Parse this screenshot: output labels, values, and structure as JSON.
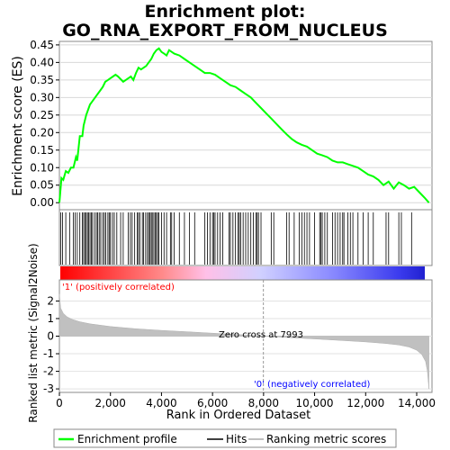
{
  "chart_data": [
    {
      "type": "line",
      "title": "Enrichment plot: GO_RNA_EXPORT_FROM_NUCLEUS",
      "ylabel": "Enrichment score (ES)",
      "ylim": [
        -0.02,
        0.46
      ],
      "xlim": [
        0,
        14600
      ],
      "y_ticks": [
        0.0,
        0.05,
        0.1,
        0.15,
        0.2,
        0.25,
        0.3,
        0.35,
        0.4,
        0.45
      ],
      "y_tick_labels": [
        "0.00",
        "0.05",
        "0.10",
        "0.15",
        "0.20",
        "0.25",
        "0.30",
        "0.35",
        "0.40",
        "0.45"
      ],
      "series": [
        {
          "name": "Enrichment profile",
          "color": "#00ff00",
          "x": [
            0,
            80,
            150,
            250,
            350,
            450,
            550,
            650,
            700,
            800,
            900,
            950,
            1050,
            1150,
            1200,
            1300,
            1400,
            1500,
            1600,
            1700,
            1800,
            1900,
            2000,
            2100,
            2200,
            2300,
            2500,
            2600,
            2700,
            2800,
            2900,
            3000,
            3100,
            3200,
            3300,
            3400,
            3500,
            3600,
            3700,
            3800,
            3900,
            4000,
            4100,
            4200,
            4300,
            4400,
            4500,
            4700,
            4900,
            5100,
            5300,
            5500,
            5700,
            5900,
            6100,
            6300,
            6500,
            6700,
            6900,
            7100,
            7300,
            7500,
            7700,
            7900,
            8100,
            8300,
            8500,
            8700,
            8900,
            9100,
            9300,
            9500,
            9700,
            9900,
            10100,
            10300,
            10500,
            10700,
            10900,
            11100,
            11300,
            11500,
            11700,
            11900,
            12100,
            12300,
            12500,
            12700,
            12900,
            13100,
            13300,
            13500,
            13700,
            13900,
            14100,
            14300,
            14480
          ],
          "y": [
            0.0,
            0.07,
            0.065,
            0.09,
            0.085,
            0.1,
            0.1,
            0.13,
            0.12,
            0.19,
            0.19,
            0.22,
            0.25,
            0.27,
            0.28,
            0.29,
            0.3,
            0.31,
            0.32,
            0.33,
            0.345,
            0.35,
            0.355,
            0.36,
            0.365,
            0.36,
            0.345,
            0.35,
            0.355,
            0.36,
            0.35,
            0.37,
            0.385,
            0.38,
            0.385,
            0.39,
            0.4,
            0.41,
            0.425,
            0.435,
            0.44,
            0.43,
            0.425,
            0.42,
            0.435,
            0.43,
            0.425,
            0.42,
            0.41,
            0.4,
            0.39,
            0.38,
            0.37,
            0.37,
            0.365,
            0.355,
            0.345,
            0.335,
            0.33,
            0.32,
            0.31,
            0.3,
            0.285,
            0.27,
            0.255,
            0.24,
            0.225,
            0.21,
            0.195,
            0.182,
            0.172,
            0.165,
            0.16,
            0.15,
            0.14,
            0.135,
            0.13,
            0.12,
            0.115,
            0.115,
            0.11,
            0.105,
            0.1,
            0.09,
            0.08,
            0.075,
            0.065,
            0.05,
            0.06,
            0.04,
            0.058,
            0.05,
            0.04,
            0.045,
            0.03,
            0.015,
            0.0
          ]
        }
      ]
    },
    {
      "type": "scatter",
      "legend_label": "Hits",
      "xlim": [
        0,
        14600
      ],
      "hit_positions": [
        50,
        120,
        250,
        400,
        550,
        620,
        700,
        800,
        900,
        950,
        1000,
        1050,
        1100,
        1150,
        1200,
        1250,
        1300,
        1380,
        1450,
        1500,
        1560,
        1620,
        1700,
        1760,
        1820,
        1900,
        1950,
        2000,
        2080,
        2150,
        2250,
        2400,
        2500,
        2700,
        2780,
        2850,
        2950,
        3050,
        3100,
        3150,
        3250,
        3300,
        3380,
        3450,
        3500,
        3550,
        3600,
        3640,
        3700,
        3750,
        3800,
        3850,
        3900,
        4000,
        4100,
        4200,
        4350,
        4400,
        4500,
        4700,
        4900,
        5100,
        5300,
        5700,
        5800,
        5900,
        6000,
        6050,
        6100,
        6200,
        6300,
        6400,
        6650,
        6700,
        6800,
        6900,
        7000,
        7050,
        7100,
        7200,
        7300,
        7400,
        7500,
        7600,
        7700,
        7750,
        7800,
        7900,
        8300,
        8400,
        8900,
        9000,
        9200,
        9400,
        9500,
        9600,
        9700,
        9800,
        10000,
        10200,
        10250,
        10300,
        10400,
        10500,
        10700,
        10800,
        10900,
        11000,
        11100,
        11150,
        11300,
        11400,
        11500,
        11700,
        11900,
        12100,
        12300,
        12800,
        12900,
        13300,
        13400,
        13800
      ]
    },
    {
      "type": "area",
      "ylabel": "Ranked list metric (Signal2Noise)",
      "xlabel": "Rank in Ordered Dataset",
      "xlim": [
        0,
        14600
      ],
      "ylim": [
        -3.2,
        3.2
      ],
      "y_ticks": [
        -3,
        -2,
        -1,
        0,
        1,
        2
      ],
      "y_tick_labels": [
        "-3",
        "-2",
        "-1",
        "0",
        "1",
        "2"
      ],
      "x_ticks": [
        0,
        2000,
        4000,
        6000,
        8000,
        10000,
        12000,
        14000
      ],
      "x_tick_labels": [
        "0",
        "2,000",
        "4,000",
        "6,000",
        "8,000",
        "10,000",
        "12,000",
        "14,000"
      ],
      "x": [
        0,
        50,
        150,
        300,
        500,
        800,
        1200,
        2000,
        3000,
        4000,
        5000,
        6000,
        7000,
        7993,
        9000,
        10000,
        11000,
        12000,
        12800,
        13300,
        13700,
        14000,
        14200,
        14350,
        14420,
        14480
      ],
      "values": [
        2.4,
        1.6,
        1.3,
        1.1,
        0.95,
        0.82,
        0.7,
        0.55,
        0.42,
        0.33,
        0.25,
        0.17,
        0.09,
        0.0,
        -0.08,
        -0.16,
        -0.24,
        -0.33,
        -0.42,
        -0.5,
        -0.62,
        -0.8,
        -1.05,
        -1.45,
        -2.0,
        -3.0
      ],
      "annotations": {
        "positive": "'1' (positively correlated)",
        "negative": "'0' (negatively correlated)",
        "zero_cross": "Zero cross at 7993",
        "zero_cross_rank": 7993
      }
    }
  ],
  "legend": {
    "items": [
      {
        "label": "Enrichment profile",
        "color": "#00ff00"
      },
      {
        "label": "Hits",
        "color": "#000000"
      },
      {
        "label": "Ranking metric scores",
        "color": "#c0c0c0"
      }
    ]
  },
  "colors": {
    "profile": "#00ff00",
    "positive_text": "#ff0000",
    "negative_text": "#0000ff",
    "area_fill": "#c0c0c0",
    "zero_line": "#999999",
    "bar_red": "#ff0000",
    "bar_blue": "#3c3cff"
  }
}
